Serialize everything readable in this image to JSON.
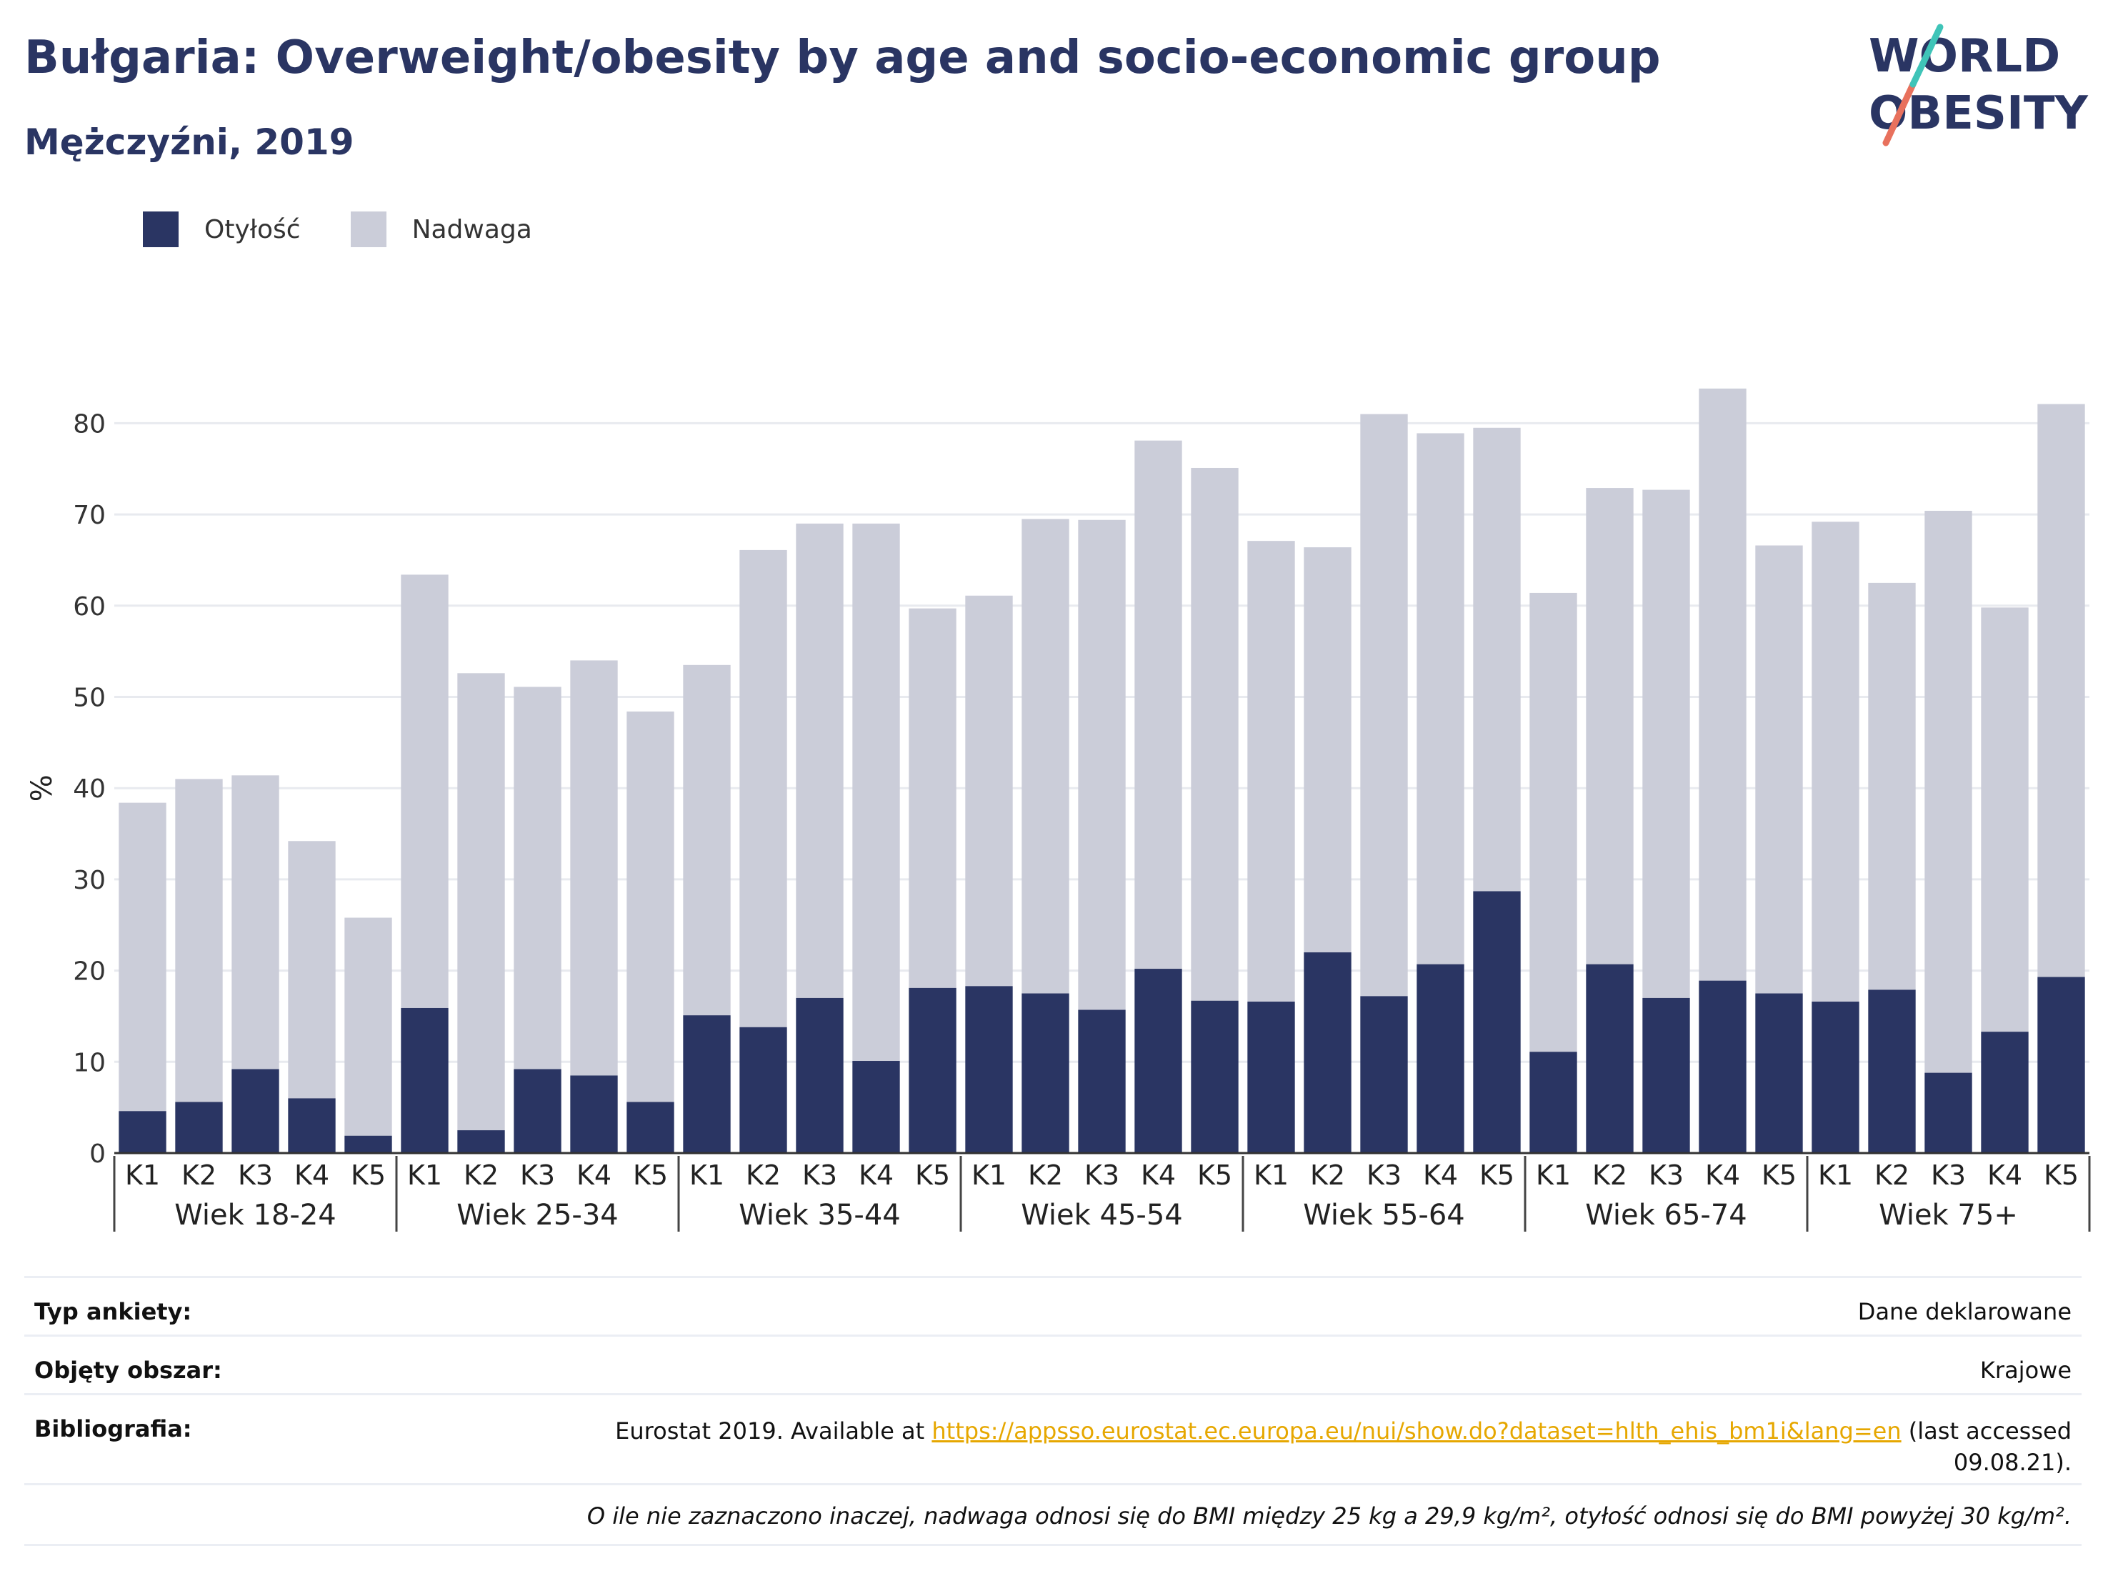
{
  "header": {
    "title": "Bułgaria: Overweight/obesity by age and socio-economic group",
    "subtitle": "Mężczyźni, 2019"
  },
  "logo": {
    "line1": "WORLD",
    "line2": "OBESITY",
    "colors": [
      "#2a3563",
      "#e8715d",
      "#3fc4b8"
    ]
  },
  "legend": [
    {
      "label": "Otyłość",
      "color": "#2a3563"
    },
    {
      "label": "Nadwaga",
      "color": "#cbcdd9"
    }
  ],
  "chart_data": {
    "type": "bar",
    "stacked": true,
    "ylabel": "%",
    "ylim": [
      0,
      85
    ],
    "yticks": [
      0,
      10,
      20,
      30,
      40,
      50,
      60,
      70,
      80
    ],
    "grid": true,
    "legend_position": "top-left",
    "groups": [
      "Wiek 18-24",
      "Wiek 25-34",
      "Wiek 35-44",
      "Wiek 45-54",
      "Wiek 55-64",
      "Wiek 65-74",
      "Wiek 75+"
    ],
    "categories": [
      "K1",
      "K2",
      "K3",
      "K4",
      "K5"
    ],
    "series": [
      {
        "name": "Otyłość",
        "color": "#2a3563",
        "values": [
          [
            4.6,
            5.6,
            9.2,
            6.0,
            1.9
          ],
          [
            15.9,
            2.5,
            9.2,
            8.5,
            5.6
          ],
          [
            15.1,
            13.8,
            17.0,
            10.1,
            18.1
          ],
          [
            18.3,
            17.5,
            15.7,
            20.2,
            16.7
          ],
          [
            16.6,
            22.0,
            17.2,
            20.7,
            28.7
          ],
          [
            11.1,
            20.7,
            17.0,
            18.9,
            17.5
          ],
          [
            16.6,
            17.9,
            8.8,
            13.3,
            19.3
          ]
        ]
      },
      {
        "name": "Nadwaga",
        "color": "#cbcdd9",
        "values": [
          [
            33.8,
            35.4,
            32.2,
            28.2,
            23.9
          ],
          [
            47.5,
            50.1,
            41.9,
            45.5,
            42.8
          ],
          [
            38.4,
            52.3,
            52.0,
            58.9,
            41.6
          ],
          [
            42.8,
            52.0,
            53.7,
            57.9,
            58.4
          ],
          [
            50.5,
            44.4,
            63.8,
            58.2,
            50.8
          ],
          [
            50.3,
            52.2,
            55.7,
            64.9,
            49.1
          ],
          [
            52.6,
            44.6,
            61.6,
            46.5,
            62.8
          ]
        ]
      }
    ]
  },
  "info": {
    "survey_type_label": "Typ ankiety:",
    "survey_type_value": "Dane deklarowane",
    "area_label": "Objęty obszar:",
    "area_value": "Krajowe",
    "biblio_label": "Bibliografia:",
    "biblio_prefix": "Eurostat 2019. Available at",
    "biblio_link": "https://appsso.eurostat.ec.europa.eu/nui/show.do?dataset=hlth_ehis_bm1i&lang=en",
    "biblio_suffix1": "(last accessed",
    "biblio_suffix2": "09.08.21).",
    "note": "O ile nie zaznaczono inaczej, nadwaga odnosi się do BMI między 25 kg a 29,9 kg/m², otyłość odnosi się do BMI powyżej 30 kg/m²."
  }
}
